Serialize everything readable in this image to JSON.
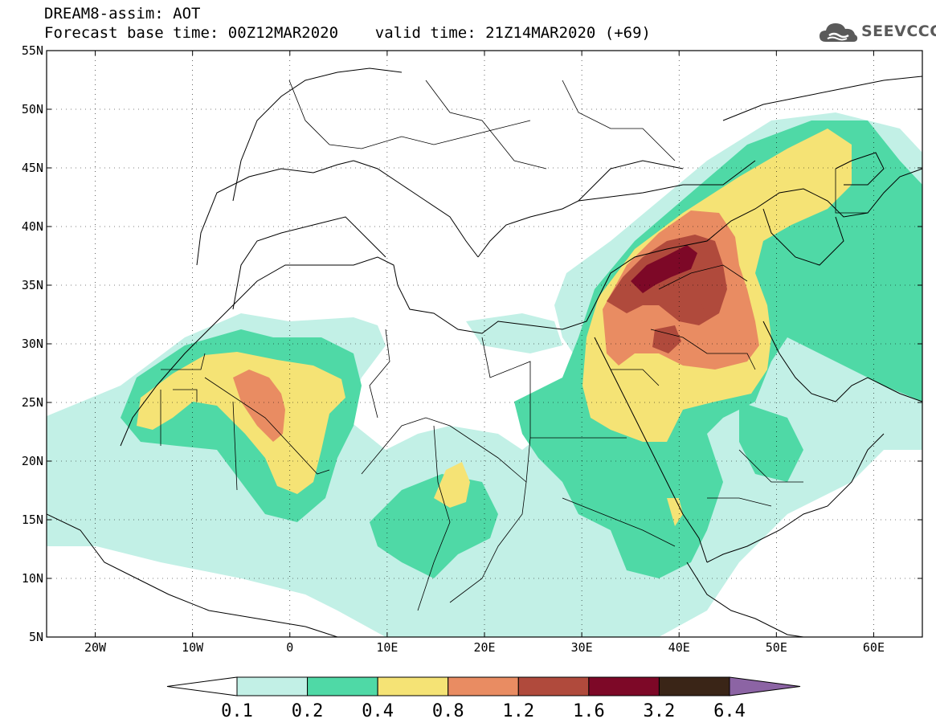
{
  "header": {
    "title_line1": "DREAM8-assim: AOT",
    "title_line2": "Forecast base time: 00Z12MAR2020    valid time: 21Z14MAR2020 (+69)"
  },
  "logo": {
    "text": "SEEVCCC",
    "icon": "cloud-icon"
  },
  "map": {
    "lon_range": [
      -25,
      65
    ],
    "lat_range": [
      5,
      55
    ],
    "lon_ticks": [
      {
        "lon": -20,
        "label": "20W"
      },
      {
        "lon": -10,
        "label": "10W"
      },
      {
        "lon": 0,
        "label": "0"
      },
      {
        "lon": 10,
        "label": "10E"
      },
      {
        "lon": 20,
        "label": "20E"
      },
      {
        "lon": 30,
        "label": "30E"
      },
      {
        "lon": 40,
        "label": "40E"
      },
      {
        "lon": 50,
        "label": "50E"
      },
      {
        "lon": 60,
        "label": "60E"
      }
    ],
    "lat_ticks": [
      {
        "lat": 5,
        "label": "5N"
      },
      {
        "lat": 10,
        "label": "10N"
      },
      {
        "lat": 15,
        "label": "15N"
      },
      {
        "lat": 20,
        "label": "20N"
      },
      {
        "lat": 25,
        "label": "25N"
      },
      {
        "lat": 30,
        "label": "30N"
      },
      {
        "lat": 35,
        "label": "35N"
      },
      {
        "lat": 40,
        "label": "40N"
      },
      {
        "lat": 45,
        "label": "45N"
      },
      {
        "lat": 50,
        "label": "50N"
      },
      {
        "lat": 55,
        "label": "55N"
      }
    ],
    "grid": "dotted"
  },
  "colorbar": {
    "labels": [
      "0.1",
      "0.2",
      "0.4",
      "0.8",
      "1.2",
      "1.6",
      "3.2",
      "6.4"
    ],
    "colors": [
      "#ffffff",
      "#c2f0e6",
      "#4fd9a6",
      "#f5e375",
      "#e98c62",
      "#b04a3c",
      "#7d0827",
      "#3a2517",
      "#8c64a4"
    ]
  }
}
